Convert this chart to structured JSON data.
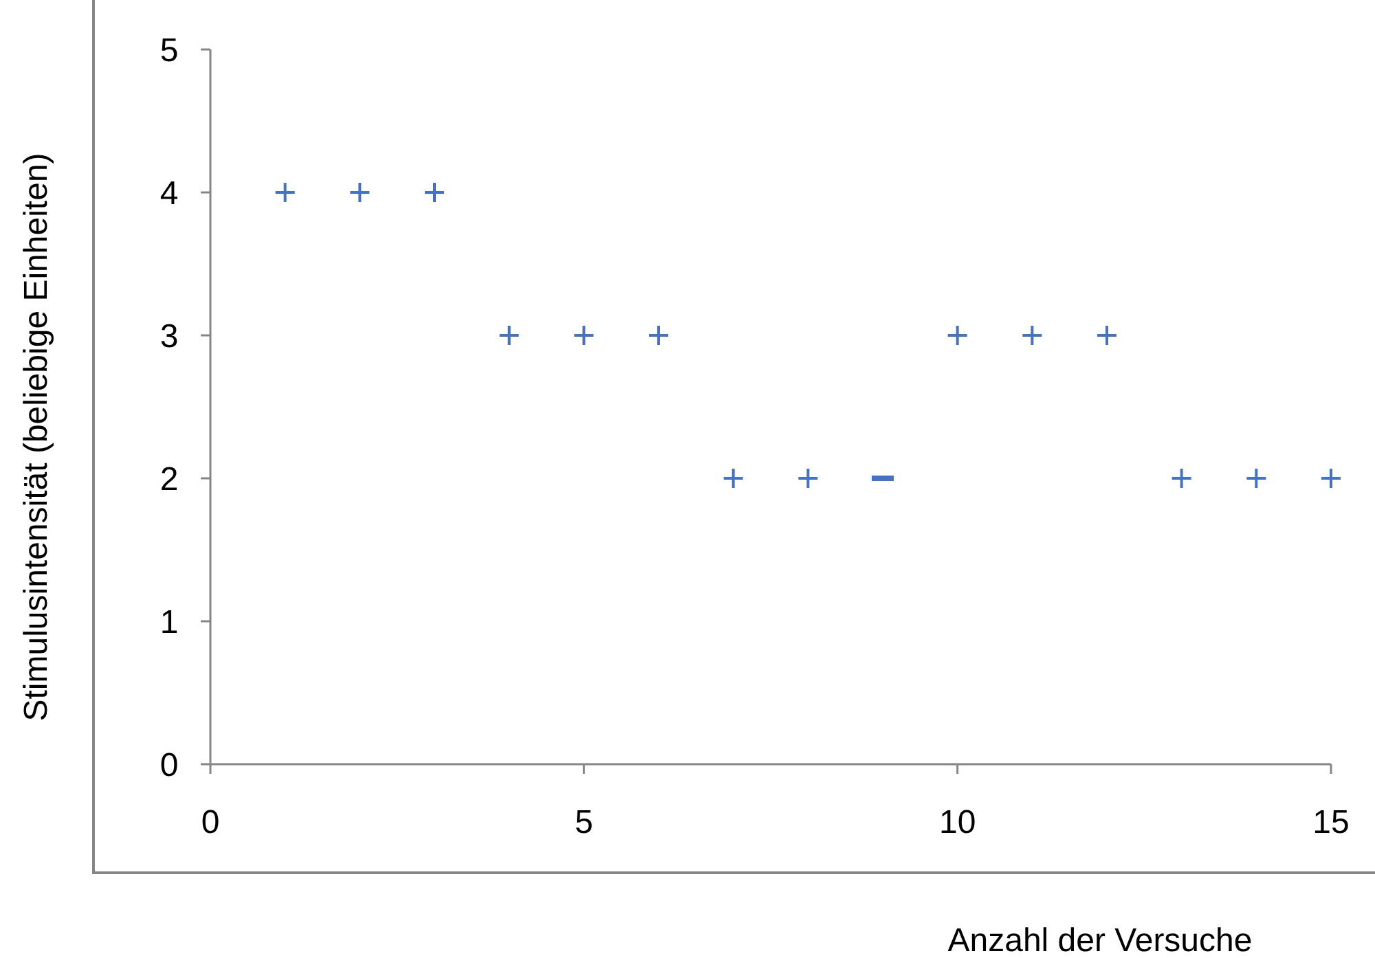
{
  "chart_data": {
    "type": "scatter",
    "xlabel": "Anzahl der Versuche",
    "ylabel": "Stimulusintensität (beliebige Einheiten)",
    "xlim": [
      0,
      15
    ],
    "xticks": [
      0,
      5,
      10,
      15
    ],
    "ylim": [
      0,
      5
    ],
    "yticks": [
      0,
      1,
      2,
      3,
      4,
      5
    ],
    "grid": false,
    "series": [
      {
        "color": "#4472c4",
        "marker": "cross",
        "x": [
          1,
          2,
          3,
          4,
          5,
          6,
          7,
          8,
          10,
          11,
          12,
          13,
          14,
          15
        ],
        "values": [
          4,
          4,
          4,
          3,
          3,
          3,
          2,
          2,
          3,
          3,
          3,
          2,
          2,
          2
        ]
      },
      {
        "color": "#4472c4",
        "x": [
          9
        ],
        "values": [
          2
        ]
      }
    ]
  }
}
